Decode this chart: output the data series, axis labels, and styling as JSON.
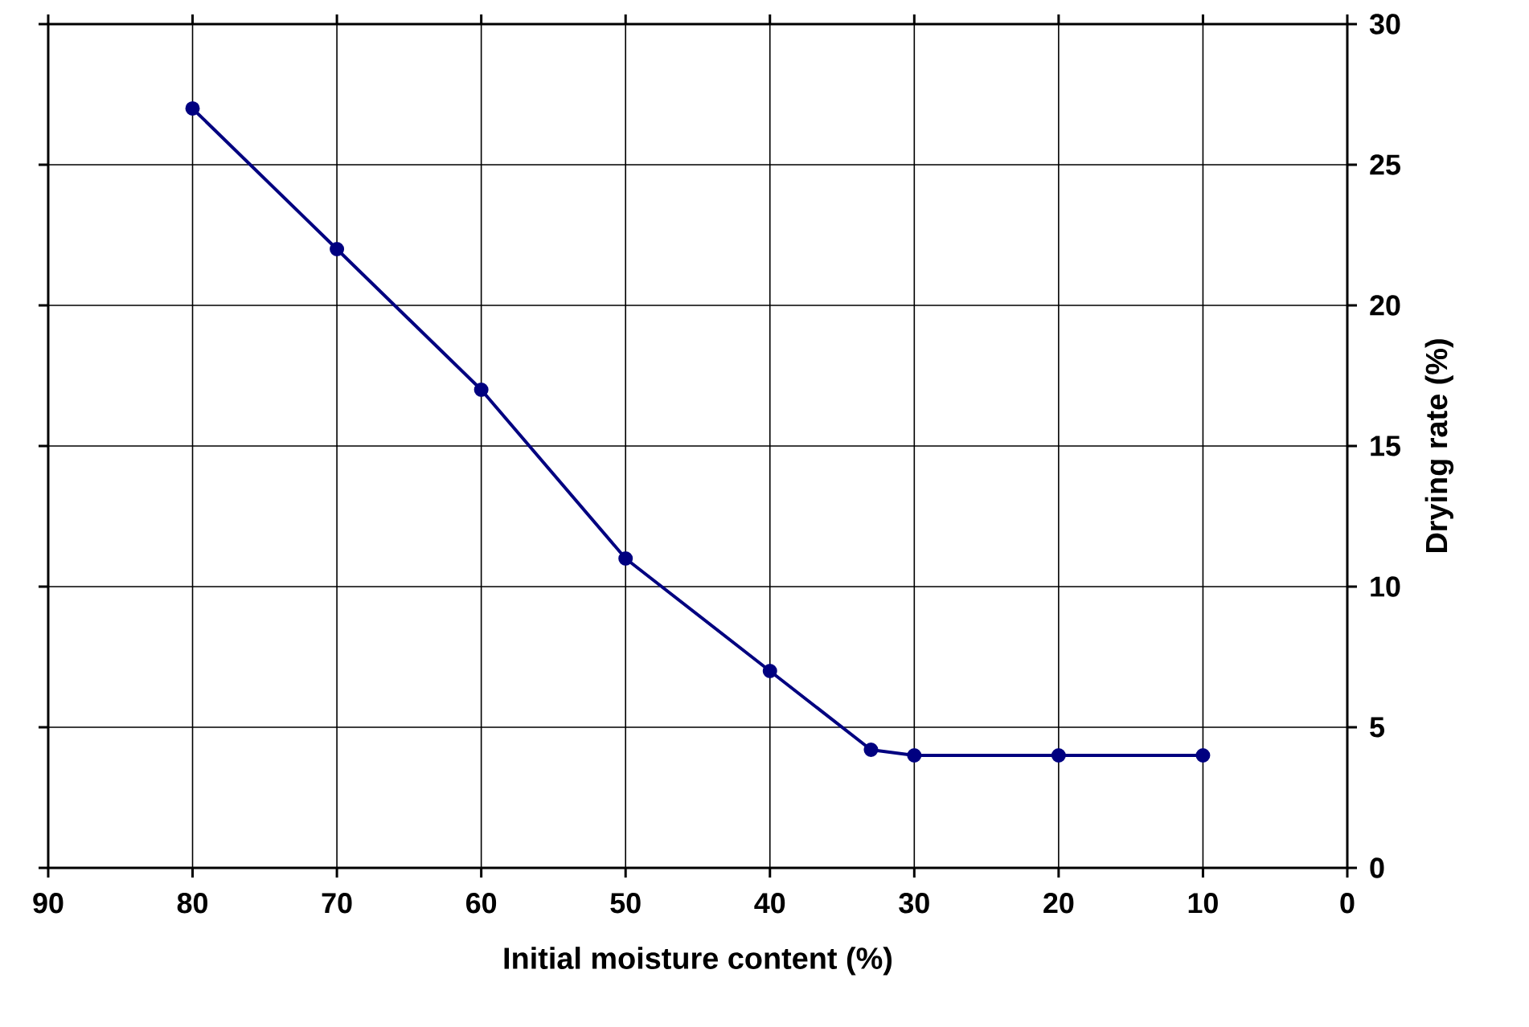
{
  "chart_data": {
    "type": "line",
    "xlabel": "Initial moisture content (%)",
    "ylabel": "Drying rate (%)",
    "x": [
      80,
      70,
      60,
      50,
      40,
      33,
      30,
      20,
      10
    ],
    "series": [
      {
        "color": "#000080",
        "values": [
          27,
          22,
          17,
          11,
          7,
          4.2,
          4,
          4,
          4
        ]
      }
    ],
    "xlim": [
      90,
      0
    ],
    "xticks": [
      90,
      80,
      70,
      60,
      50,
      40,
      30,
      20,
      10,
      0
    ],
    "ylim": [
      0,
      30
    ],
    "yticks": [
      0,
      5,
      10,
      15,
      20,
      25,
      30
    ],
    "grid": true,
    "marker": "circle",
    "line_style": "solid"
  }
}
